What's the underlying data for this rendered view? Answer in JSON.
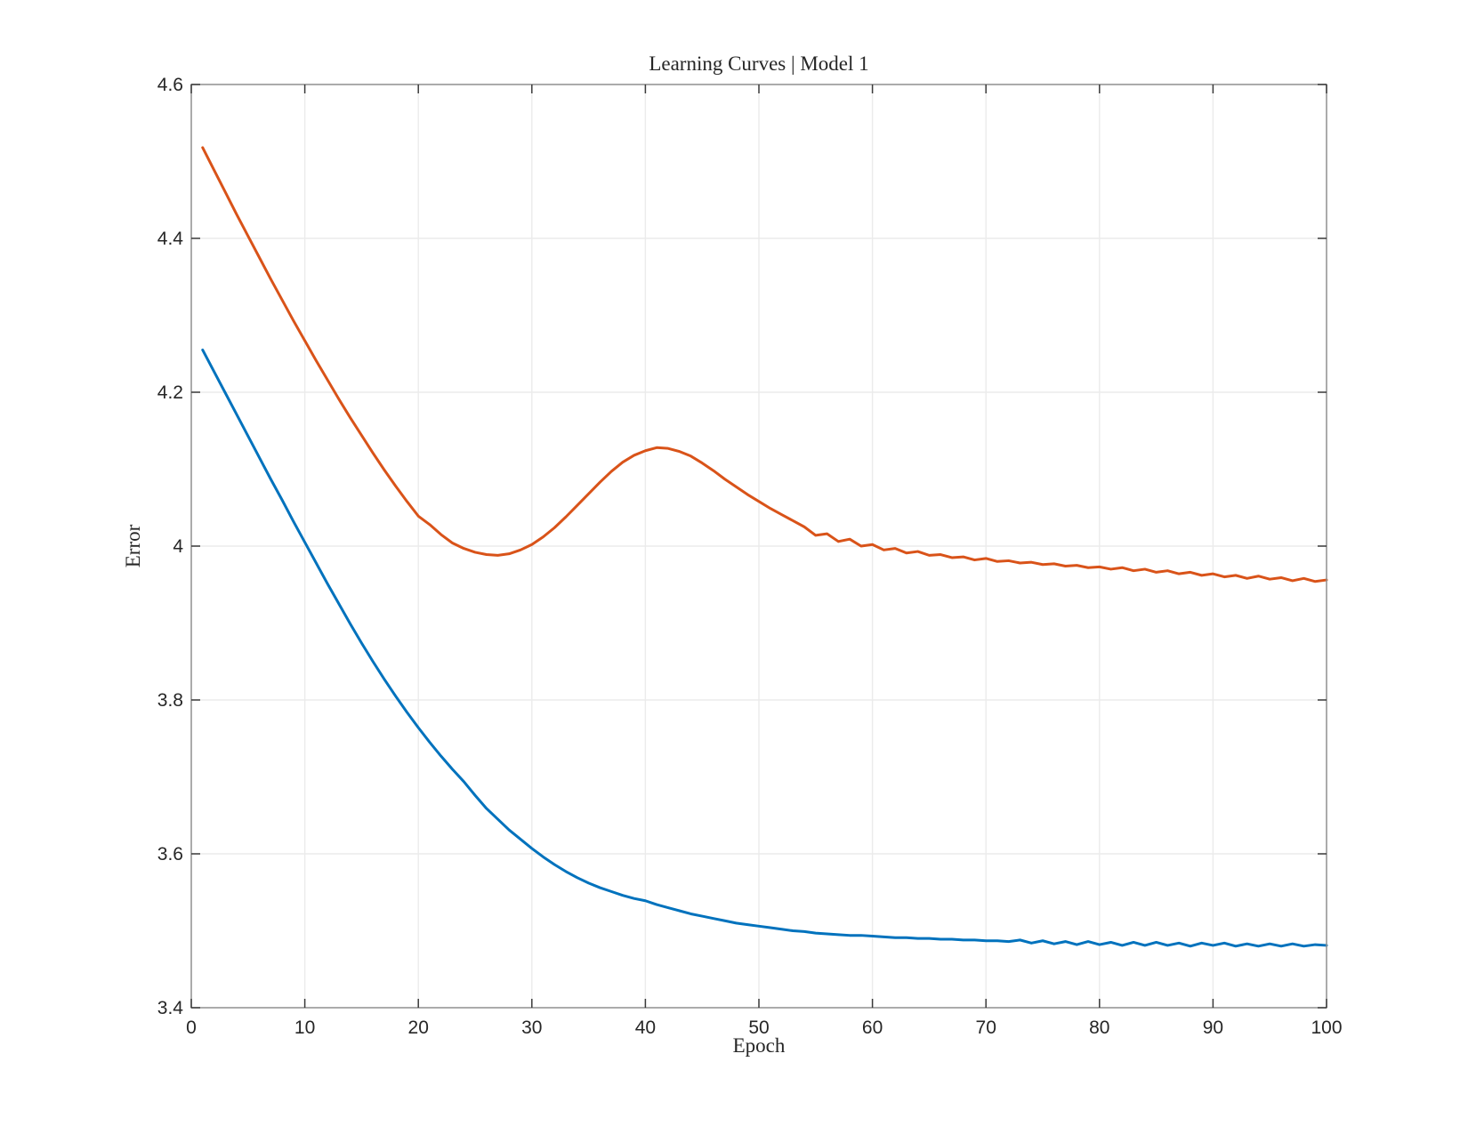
{
  "chart_data": {
    "type": "line",
    "title": "Learning Curves | Model 1",
    "xlabel": "Epoch",
    "ylabel": "Error",
    "xlim": [
      0,
      100
    ],
    "ylim": [
      3.4,
      4.6
    ],
    "xticks": [
      0,
      10,
      20,
      30,
      40,
      50,
      60,
      70,
      80,
      90,
      100
    ],
    "yticks": [
      3.4,
      3.6,
      3.8,
      4,
      4.2,
      4.4,
      4.6
    ],
    "grid": true,
    "legend": "none",
    "x_start": 1,
    "x_step": 1,
    "colors": {
      "box": "#8f8f8f",
      "grid": "#ebebeb",
      "tick": "#3a3a3a",
      "text": "#262626",
      "background": "#ffffff"
    },
    "series": [
      {
        "name": "blue-curve",
        "color": "#0072BD",
        "values": [
          4.255,
          4.227,
          4.199,
          4.171,
          4.143,
          4.115,
          4.087,
          4.06,
          4.032,
          4.005,
          3.978,
          3.951,
          3.925,
          3.899,
          3.874,
          3.85,
          3.827,
          3.805,
          3.784,
          3.764,
          3.745,
          3.727,
          3.71,
          3.694,
          3.676,
          3.659,
          3.645,
          3.631,
          3.619,
          3.607,
          3.596,
          3.586,
          3.577,
          3.569,
          3.562,
          3.556,
          3.551,
          3.546,
          3.542,
          3.539,
          3.534,
          3.53,
          3.526,
          3.522,
          3.519,
          3.516,
          3.513,
          3.51,
          3.508,
          3.506,
          3.504,
          3.502,
          3.5,
          3.499,
          3.497,
          3.496,
          3.495,
          3.494,
          3.494,
          3.493,
          3.492,
          3.491,
          3.491,
          3.49,
          3.49,
          3.489,
          3.489,
          3.488,
          3.488,
          3.487,
          3.487,
          3.486,
          3.488,
          3.484,
          3.487,
          3.483,
          3.486,
          3.482,
          3.486,
          3.482,
          3.485,
          3.481,
          3.485,
          3.481,
          3.485,
          3.481,
          3.484,
          3.48,
          3.484,
          3.481,
          3.484,
          3.48,
          3.483,
          3.48,
          3.483,
          3.48,
          3.483,
          3.48,
          3.482,
          3.481
        ]
      },
      {
        "name": "orange-curve",
        "color": "#D95319",
        "values": [
          4.518,
          4.489,
          4.46,
          4.431,
          4.403,
          4.375,
          4.347,
          4.32,
          4.293,
          4.267,
          4.241,
          4.216,
          4.191,
          4.167,
          4.144,
          4.121,
          4.099,
          4.078,
          4.058,
          4.039,
          4.028,
          4.015,
          4.004,
          3.997,
          3.992,
          3.989,
          3.988,
          3.99,
          3.995,
          4.002,
          4.012,
          4.024,
          4.038,
          4.053,
          4.068,
          4.083,
          4.097,
          4.109,
          4.118,
          4.124,
          4.128,
          4.127,
          4.123,
          4.117,
          4.108,
          4.098,
          4.087,
          4.077,
          4.067,
          4.058,
          4.049,
          4.041,
          4.033,
          4.025,
          4.014,
          4.016,
          4.006,
          4.009,
          4.0,
          4.002,
          3.995,
          3.997,
          3.991,
          3.993,
          3.988,
          3.989,
          3.985,
          3.986,
          3.982,
          3.984,
          3.98,
          3.981,
          3.978,
          3.979,
          3.976,
          3.977,
          3.974,
          3.975,
          3.972,
          3.973,
          3.97,
          3.972,
          3.968,
          3.97,
          3.966,
          3.968,
          3.964,
          3.966,
          3.962,
          3.964,
          3.96,
          3.962,
          3.958,
          3.961,
          3.957,
          3.959,
          3.955,
          3.958,
          3.954,
          3.956
        ]
      }
    ]
  }
}
